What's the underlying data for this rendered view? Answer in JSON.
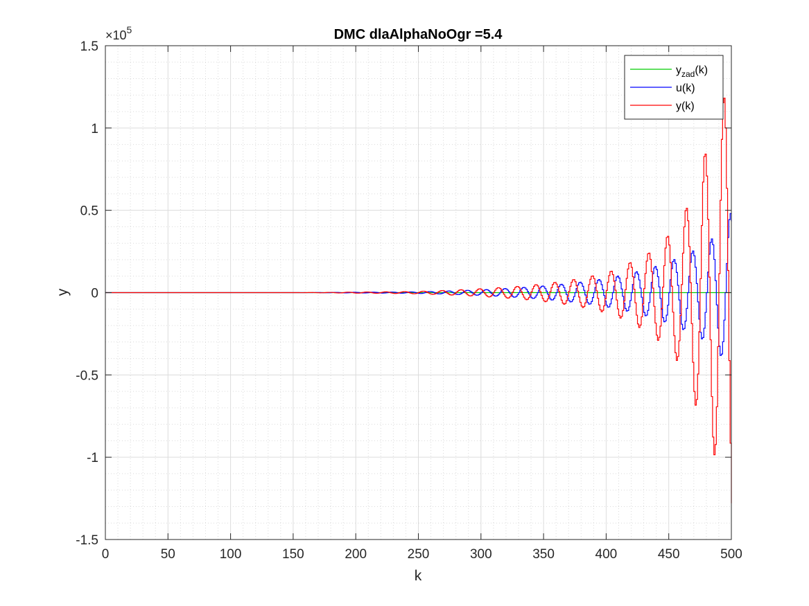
{
  "chart_data": {
    "type": "line",
    "title": "DMC dlaAlphaNoOgr =5.4",
    "xlabel": "k",
    "ylabel": "y",
    "xlim": [
      0,
      500
    ],
    "ylim": [
      -150000,
      150000
    ],
    "y_exponent": {
      "base": "×10",
      "power": "5"
    },
    "x_ticks": [
      0,
      50,
      100,
      150,
      200,
      250,
      300,
      350,
      400,
      450,
      500
    ],
    "x_tick_labels": [
      "0",
      "50",
      "100",
      "150",
      "200",
      "250",
      "300",
      "350",
      "400",
      "450",
      "500"
    ],
    "y_ticks": [
      -150000,
      -100000,
      -50000,
      0,
      50000,
      100000,
      150000
    ],
    "y_tick_labels": [
      "-1.5",
      "-1",
      "-0.5",
      "0",
      "0.5",
      "1",
      "1.5"
    ],
    "grid": true,
    "minor_grid": true,
    "legend": {
      "placement": "top-right",
      "entries": [
        {
          "label_main": "y",
          "label_sub": "zad",
          "label_tail": "(k)",
          "color": "#00cc00"
        },
        {
          "label_main": "u(k)",
          "label_sub": "",
          "label_tail": "",
          "color": "#0000ff"
        },
        {
          "label_main": "y(k)",
          "label_sub": "",
          "label_tail": "",
          "color": "#ff0000"
        }
      ]
    },
    "series": [
      {
        "id": "yzad",
        "color": "#00cc00",
        "style": "stairs",
        "constant": 0
      },
      {
        "id": "u",
        "color": "#0000ff",
        "style": "stairs",
        "step": 5,
        "comment_free_peaks": [
          [
            240,
            400
          ],
          [
            255,
            600
          ],
          [
            270,
            900
          ],
          [
            285,
            1300
          ],
          [
            300,
            1700
          ],
          [
            315,
            2300
          ],
          [
            330,
            3000
          ],
          [
            345,
            3800
          ],
          [
            360,
            4800
          ],
          [
            375,
            6000
          ],
          [
            390,
            7500
          ],
          [
            405,
            9500
          ],
          [
            420,
            12000
          ],
          [
            435,
            15000
          ],
          [
            450,
            19000
          ],
          [
            465,
            24000
          ],
          [
            480,
            30000
          ],
          [
            495,
            42000
          ],
          [
            500,
            50000
          ]
        ]
      },
      {
        "id": "y",
        "color": "#ff0000",
        "style": "stairs",
        "step": 5,
        "comment_free_peaks": [
          [
            240,
            600
          ],
          [
            255,
            900
          ],
          [
            270,
            1300
          ],
          [
            285,
            1800
          ],
          [
            300,
            2400
          ],
          [
            315,
            3100
          ],
          [
            330,
            3900
          ],
          [
            345,
            5000
          ],
          [
            360,
            6400
          ],
          [
            375,
            8200
          ],
          [
            390,
            10500
          ],
          [
            405,
            13500
          ],
          [
            420,
            19000
          ],
          [
            435,
            25000
          ],
          [
            445,
            32000
          ],
          [
            455,
            40000
          ],
          [
            465,
            54000
          ],
          [
            475,
            80000
          ],
          [
            485,
            96000
          ],
          [
            492,
            115000
          ],
          [
            500,
            140000
          ]
        ]
      }
    ]
  }
}
